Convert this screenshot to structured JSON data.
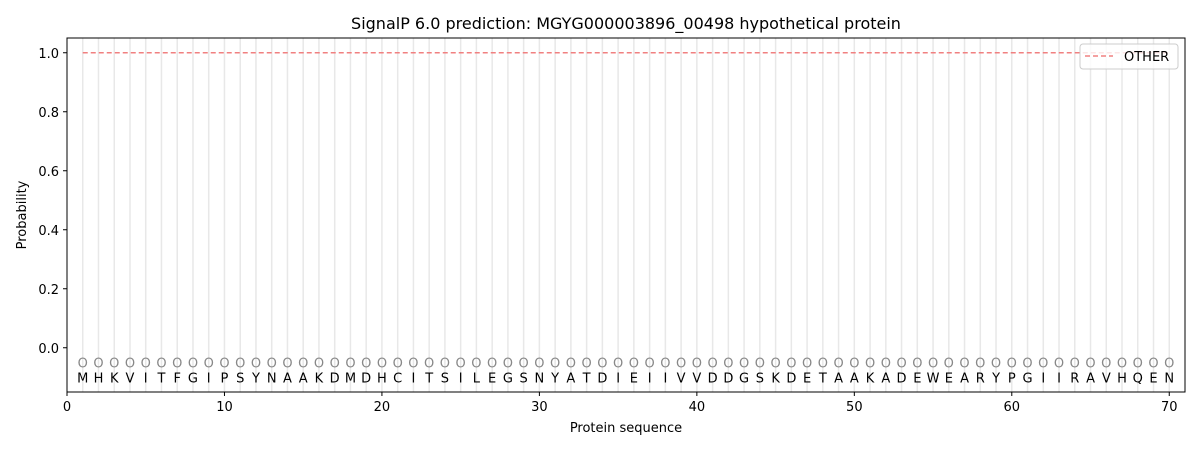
{
  "chart_data": {
    "type": "line",
    "title": "SignalP 6.0 prediction: MGYG000003896_00498 hypothetical protein",
    "xlabel": "Protein sequence",
    "ylabel": "Probability",
    "xlim": [
      0,
      71
    ],
    "ylim": [
      -0.15,
      1.05
    ],
    "xticks": [
      0,
      10,
      20,
      30,
      40,
      50,
      60,
      70
    ],
    "yticks": [
      "0.0",
      "0.2",
      "0.4",
      "0.6",
      "0.8",
      "1.0"
    ],
    "grid": "vertical lines at each residue",
    "legend_position": "top-right",
    "sequence": "MHKVITFGIPSYNAAKDMDHCITSILEGSNYATDIEIIVVDDGSKDETAAKADEWEARYPGIIRAVHQEN",
    "predicted_labels": "OOOOOOOOOOOOOOOOOOOOOOOOOOOOOOOOOOOOOOOOOOOOOOOOOOOOOOOOOOOOOOOOOOOOOO",
    "series": [
      {
        "name": "OTHER",
        "color": "#f08080",
        "style": "dashed",
        "x_start": 1,
        "x_end": 70,
        "value": 1.0
      }
    ]
  }
}
